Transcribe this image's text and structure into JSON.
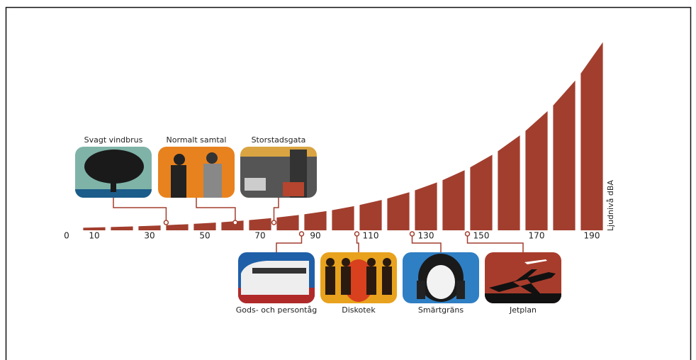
{
  "chart_data": {
    "type": "bar",
    "x": [
      10,
      20,
      30,
      40,
      50,
      60,
      70,
      80,
      90,
      100,
      110,
      120,
      130,
      140,
      150,
      160,
      170,
      180,
      190
    ],
    "values": [
      10,
      20,
      30,
      40,
      50,
      60,
      70,
      80,
      90,
      100,
      110,
      120,
      130,
      140,
      150,
      160,
      170,
      180,
      190
    ],
    "color": "#a23e2e",
    "xlim": [
      0,
      190
    ],
    "xticks": [
      0,
      10,
      30,
      50,
      70,
      90,
      110,
      130,
      150,
      170,
      190
    ],
    "x_label": "Ljudnivå dBA",
    "annotations": [
      {
        "label": "Svagt vindbrus",
        "x": 36,
        "side": "top"
      },
      {
        "label": "Normalt samtal",
        "x": 61,
        "side": "top"
      },
      {
        "label": "Storstadsgata",
        "x": 75,
        "side": "top"
      },
      {
        "label": "Gods- och persontåg",
        "x": 85,
        "side": "bottom"
      },
      {
        "label": "Diskotek",
        "x": 105,
        "side": "bottom"
      },
      {
        "label": "Smärtgräns",
        "x": 125,
        "side": "bottom"
      },
      {
        "label": "Jetplan",
        "x": 145,
        "side": "bottom"
      }
    ]
  }
}
